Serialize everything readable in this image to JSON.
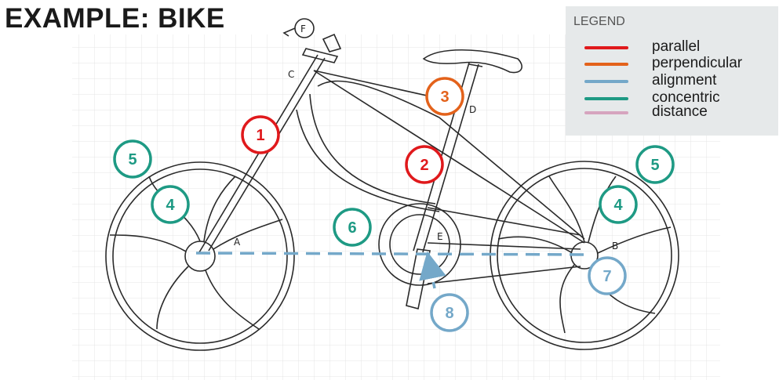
{
  "title": "EXAMPLE: BIKE",
  "colors": {
    "red": "#e0191c",
    "orange": "#e3621b",
    "blue": "#74a8c9",
    "teal": "#1e9a84",
    "pink": "#d6a4be",
    "grid": "#e4e4e4",
    "line": "#2a2a2a"
  },
  "legend": {
    "title": "LEGEND",
    "items": [
      {
        "label": "parallel",
        "color": "#e0191c"
      },
      {
        "label": "perpendicular",
        "color": "#e3621b"
      },
      {
        "label": "alignment",
        "color": "#74a8c9"
      },
      {
        "label": "concentric",
        "color": "#1e9a84"
      },
      {
        "label": "distance",
        "color": "#d6a4be"
      }
    ]
  },
  "points": [
    "A",
    "B",
    "C",
    "D",
    "E",
    "F"
  ],
  "badges": [
    {
      "num": "1",
      "kind": "parallel"
    },
    {
      "num": "2",
      "kind": "parallel"
    },
    {
      "num": "3",
      "kind": "perpendicular"
    },
    {
      "num": "4",
      "kind": "concentric"
    },
    {
      "num": "4",
      "kind": "concentric"
    },
    {
      "num": "5",
      "kind": "concentric"
    },
    {
      "num": "5",
      "kind": "concentric"
    },
    {
      "num": "6",
      "kind": "concentric"
    },
    {
      "num": "7",
      "kind": "alignment"
    },
    {
      "num": "8",
      "kind": "alignment"
    }
  ]
}
